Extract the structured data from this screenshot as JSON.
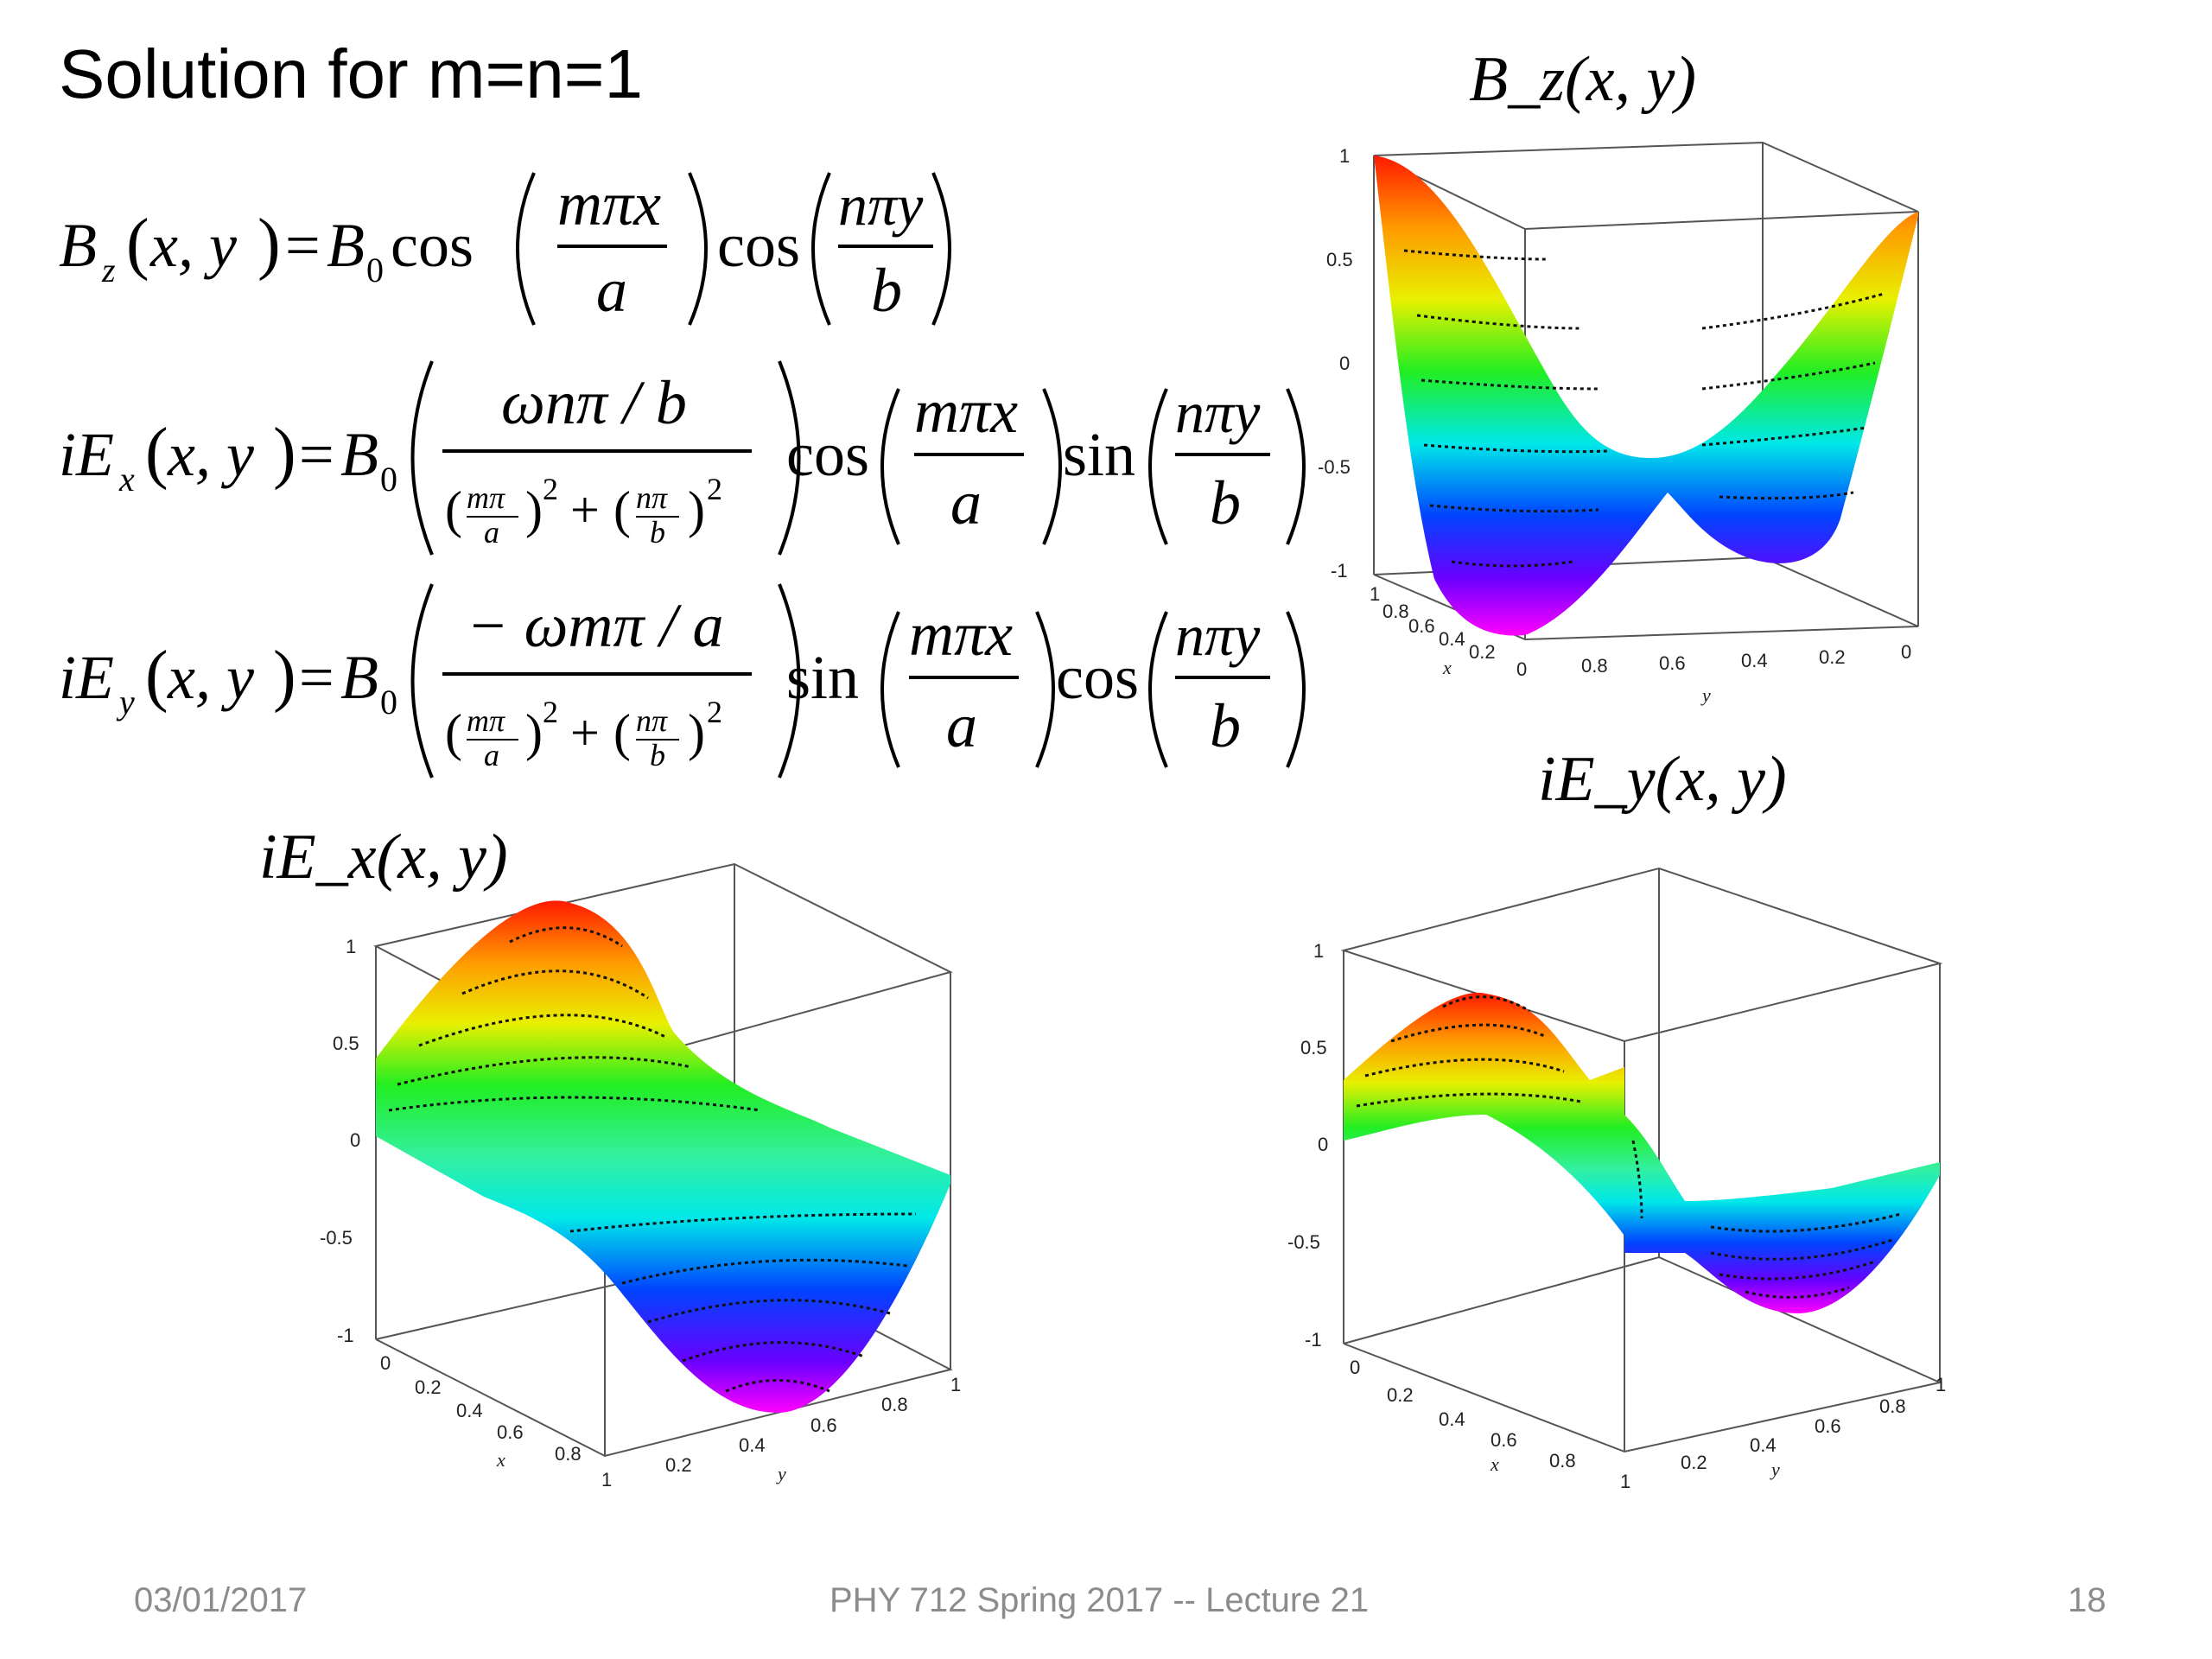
{
  "slide": {
    "title": "Solution for m=n=1",
    "equations": {
      "bz": "B_z(x, y) = B₀ cos(mπx/a) cos(nπy/b)",
      "iex": "iE_x(x, y) = B₀ ( ωnπ/b / ((mπ/a)² + (nπ/b)²) ) cos(mπx/a) sin(nπy/b)",
      "iey": "iE_y(x, y) = B₀ ( −ωmπ/a / ((mπ/a)² + (nπ/b)²) ) sin(mπx/a) cos(nπy/b)"
    },
    "plots": {
      "bz": {
        "label": "B_z(x, y)",
        "z_ticks": [
          "1",
          "0.5",
          "0",
          "-0.5",
          "-1"
        ],
        "x_ticks": [
          "1",
          "0.8",
          "0.6",
          "0.4",
          "0.2",
          "0"
        ],
        "y_ticks": [
          "0.8",
          "0.6",
          "0.4",
          "0.2",
          "0"
        ],
        "x_label": "x",
        "y_label": "y"
      },
      "iex": {
        "label": "iE_x(x, y)",
        "z_ticks": [
          "1",
          "0.5",
          "0",
          "-0.5",
          "-1"
        ],
        "x_ticks": [
          "0",
          "0.2",
          "0.4",
          "0.6",
          "0.8",
          "1"
        ],
        "y_ticks": [
          "0.2",
          "0.4",
          "0.6",
          "0.8",
          "1"
        ],
        "x_label": "x",
        "y_label": "y"
      },
      "iey": {
        "label": "iE_y(x, y)",
        "z_ticks": [
          "1",
          "0.5",
          "0",
          "-0.5",
          "-1"
        ],
        "x_ticks": [
          "0",
          "0.2",
          "0.4",
          "0.6",
          "0.8",
          "1"
        ],
        "y_ticks": [
          "0.2",
          "0.4",
          "0.6",
          "0.8",
          "1"
        ],
        "x_label": "x",
        "y_label": "y"
      }
    },
    "footer": {
      "date": "03/01/2017",
      "course": "PHY 712  Spring 2017 -- Lecture 21",
      "page": "18"
    }
  }
}
